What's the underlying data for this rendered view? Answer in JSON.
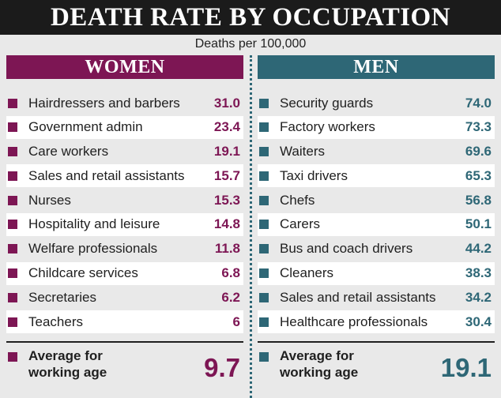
{
  "title": "DEATH RATE BY OCCUPATION",
  "subtitle": "Deaths per 100,000",
  "colors": {
    "women": "#7d1654",
    "men": "#2e6776",
    "header_bg": "#1b1b1b"
  },
  "chart_data": {
    "type": "table",
    "title": "DEATH RATE BY OCCUPATION",
    "subtitle": "Deaths per 100,000",
    "series": [
      {
        "name": "WOMEN",
        "categories": [
          "Hairdressers and barbers",
          "Government admin",
          "Care workers",
          "Sales and retail assistants",
          "Nurses",
          "Hospitality and leisure",
          "Welfare professionals",
          "Childcare services",
          "Secretaries",
          "Teachers"
        ],
        "values": [
          "31.0",
          "23.4",
          "19.1",
          "15.7",
          "15.3",
          "14.8",
          "11.8",
          "6.8",
          "6.2",
          "6"
        ],
        "average_label": [
          "Average for",
          "working age"
        ],
        "average_value": "9.7"
      },
      {
        "name": "MEN",
        "categories": [
          "Security guards",
          "Factory workers",
          "Waiters",
          "Taxi drivers",
          "Chefs",
          "Carers",
          "Bus and coach drivers",
          "Cleaners",
          "Sales and retail assistants",
          "Healthcare professionals"
        ],
        "values": [
          "74.0",
          "73.3",
          "69.6",
          "65.3",
          "56.8",
          "50.1",
          "44.2",
          "38.3",
          "34.2",
          "30.4"
        ],
        "average_label": [
          "Average for",
          "working age"
        ],
        "average_value": "19.1"
      }
    ]
  }
}
